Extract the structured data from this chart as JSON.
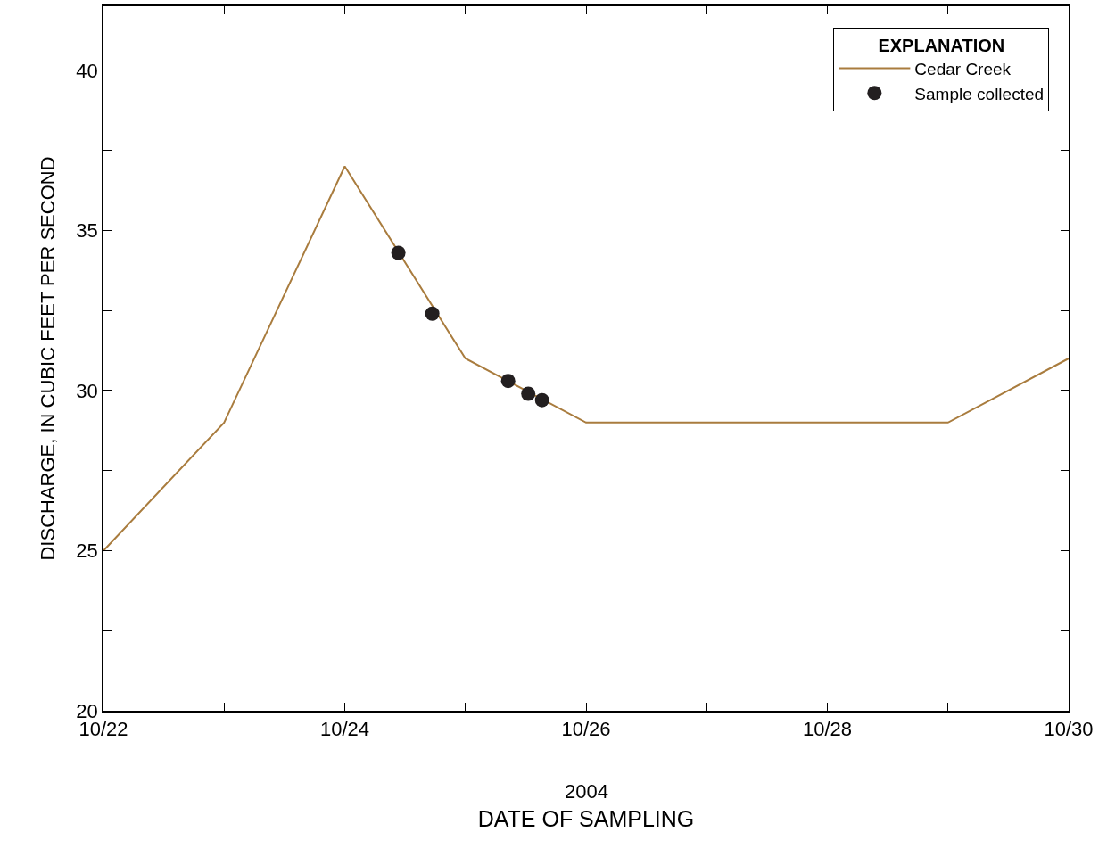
{
  "chart_data": {
    "type": "line",
    "xlabel": "DATE OF SAMPLING",
    "ylabel": "DISCHARGE, IN CUBIC FEET PER SECOND",
    "legend_title": "EXPLANATION",
    "annotations": [
      "2004"
    ],
    "x": [
      "2004-10-22",
      "2004-10-23",
      "2004-10-24",
      "2004-10-25",
      "2004-10-26",
      "2004-10-29",
      "2004-10-30"
    ],
    "series": [
      {
        "name": "Cedar Creek",
        "color": "#a97c3e",
        "values": [
          25,
          29,
          37,
          31,
          29,
          29,
          31
        ]
      },
      {
        "name": "Sample collected",
        "type": "scatter",
        "color": "#231f20",
        "marker": "circle",
        "x": [
          "2004-10-24T10:40",
          "2004-10-24T17:25",
          "2004-10-25T08:30",
          "2004-10-25T12:30",
          "2004-10-25T15:15"
        ],
        "values": [
          34.3,
          32.4,
          30.3,
          29.9,
          29.7
        ]
      }
    ],
    "xlim": [
      "2004-10-22",
      "2004-10-30"
    ],
    "xticks": [
      {
        "value": "2004-10-22",
        "label": "10/22"
      },
      {
        "value": "2004-10-23",
        "label": null
      },
      {
        "value": "2004-10-24",
        "label": "10/24"
      },
      {
        "value": "2004-10-25",
        "label": null
      },
      {
        "value": "2004-10-26",
        "label": "10/26"
      },
      {
        "value": "2004-10-27",
        "label": null
      },
      {
        "value": "2004-10-28",
        "label": "10/28"
      },
      {
        "value": "2004-10-29",
        "label": null
      },
      {
        "value": "2004-10-30",
        "label": "10/30"
      }
    ],
    "ylim": [
      20,
      42
    ],
    "yticks": [
      20,
      {
        "value": 22.5,
        "label": null
      },
      25,
      {
        "value": 27.5,
        "label": null
      },
      30,
      {
        "value": 32.5,
        "label": null
      },
      35,
      {
        "value": 37.5,
        "label": null
      },
      40
    ],
    "grid": false,
    "legend": "top right"
  }
}
